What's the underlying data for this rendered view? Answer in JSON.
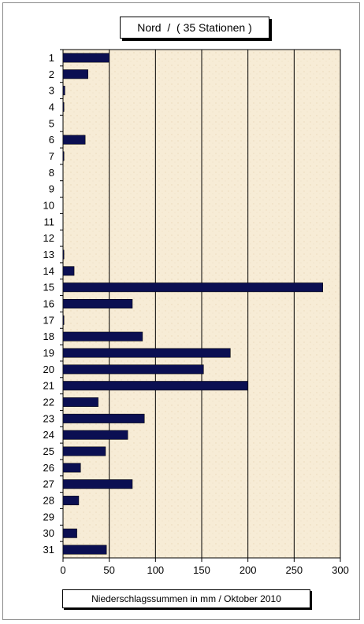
{
  "chart_data": {
    "type": "bar",
    "orientation": "horizontal",
    "title": "Nord  /  ( 35 Stationen )",
    "xlabel": "Niederschlagssummen in mm / Oktober 2010",
    "ylabel": "",
    "xlim": [
      0,
      300
    ],
    "x_ticks": [
      0,
      50,
      100,
      150,
      200,
      250,
      300
    ],
    "grid": "vertical",
    "categories": [
      "1",
      "2",
      "3",
      "4",
      "5",
      "6",
      "7",
      "8",
      "9",
      "10",
      "11",
      "12",
      "13",
      "14",
      "15",
      "16",
      "17",
      "18",
      "19",
      "20",
      "21",
      "22",
      "23",
      "24",
      "25",
      "26",
      "27",
      "28",
      "29",
      "30",
      "31"
    ],
    "values": [
      50,
      27,
      2,
      1,
      0,
      24,
      1,
      0,
      0,
      0,
      0,
      0,
      1,
      12,
      281,
      75,
      1,
      86,
      181,
      152,
      200,
      38,
      88,
      70,
      46,
      19,
      75,
      17,
      0,
      15,
      47
    ],
    "colors": {
      "bar": "#0b0f52",
      "plot_background": "#f7ecd6",
      "gridline": "#000000"
    }
  }
}
